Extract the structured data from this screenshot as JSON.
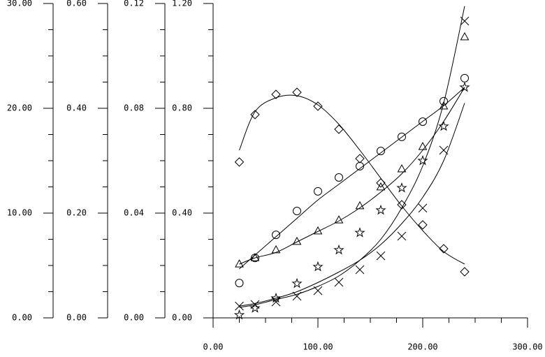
{
  "chart_data": {
    "type": "scatter",
    "x": [
      25,
      40,
      60,
      80,
      100,
      120,
      140,
      160,
      180,
      200,
      220,
      240
    ],
    "xlim": [
      0,
      300
    ],
    "xticks": [
      {
        "value": 0,
        "label": "0.00"
      },
      {
        "value": 100,
        "label": "100.00"
      },
      {
        "value": 200,
        "label": "200.00"
      },
      {
        "value": 300,
        "label": "300.00"
      }
    ],
    "xminorticks": [
      25,
      50,
      75,
      125,
      150,
      175,
      225,
      250,
      275
    ],
    "y_axes": [
      {
        "ylim": [
          0,
          30
        ],
        "yticks": [
          {
            "value": 0,
            "label": "0.00"
          },
          {
            "value": 10,
            "label": "10.00"
          },
          {
            "value": 20,
            "label": "20.00"
          },
          {
            "value": 30,
            "label": "30.00"
          }
        ],
        "yminorticks": [
          2.5,
          5,
          7.5,
          12.5,
          15,
          17.5,
          22.5,
          25,
          27.5
        ]
      },
      {
        "ylim": [
          0,
          0.6
        ],
        "yticks": [
          {
            "value": 0,
            "label": "0.00"
          },
          {
            "value": 0.2,
            "label": "0.20"
          },
          {
            "value": 0.4,
            "label": "0.40"
          },
          {
            "value": 0.6,
            "label": "0.60"
          }
        ],
        "yminorticks": [
          0.05,
          0.1,
          0.15,
          0.25,
          0.3,
          0.35,
          0.45,
          0.5,
          0.55
        ]
      },
      {
        "ylim": [
          0,
          0.12
        ],
        "yticks": [
          {
            "value": 0,
            "label": "0.00"
          },
          {
            "value": 0.04,
            "label": "0.04"
          },
          {
            "value": 0.08,
            "label": "0.08"
          },
          {
            "value": 0.12,
            "label": "0.12"
          }
        ],
        "yminorticks": [
          0.01,
          0.02,
          0.03,
          0.05,
          0.06,
          0.07,
          0.09,
          0.1,
          0.11
        ]
      },
      {
        "ylim": [
          0,
          1.2
        ],
        "yticks": [
          {
            "value": 0,
            "label": "0.00"
          },
          {
            "value": 0.4,
            "label": "0.40"
          },
          {
            "value": 0.8,
            "label": "0.80"
          },
          {
            "value": 1.2,
            "label": "1.20"
          }
        ],
        "yminorticks": [
          0.1,
          0.2,
          0.3,
          0.5,
          0.6,
          0.7,
          0.9,
          1.0,
          1.1
        ]
      }
    ],
    "color": "#000000",
    "series": [
      {
        "marker": "diamond",
        "values": [
          0.595,
          0.776,
          0.853,
          0.861,
          0.808,
          0.72,
          0.608,
          0.515,
          0.432,
          0.355,
          0.264,
          0.176
        ],
        "fit": [
          0.64,
          0.787,
          0.84,
          0.848,
          0.813,
          0.739,
          0.64,
          0.533,
          0.427,
          0.333,
          0.253,
          0.205
        ]
      },
      {
        "marker": "circle",
        "values": [
          0.133,
          0.229,
          0.317,
          0.408,
          0.483,
          0.536,
          0.579,
          0.637,
          0.691,
          0.749,
          0.827,
          0.915
        ],
        "fit": [
          0.187,
          0.24,
          0.31,
          0.38,
          0.45,
          0.51,
          0.57,
          0.63,
          0.69,
          0.75,
          0.81,
          0.88
        ]
      },
      {
        "marker": "triangle",
        "values": [
          0.205,
          0.229,
          0.259,
          0.291,
          0.331,
          0.373,
          0.427,
          0.499,
          0.568,
          0.653,
          0.808,
          1.072
        ],
        "fit": [
          0.205,
          0.229,
          0.25,
          0.29,
          0.33,
          0.37,
          0.42,
          0.48,
          0.55,
          0.64,
          0.75,
          0.88
        ]
      },
      {
        "marker": "star",
        "values": [
          0.011,
          0.037,
          0.075,
          0.131,
          0.195,
          0.259,
          0.325,
          0.411,
          0.496,
          0.6,
          0.731,
          0.88
        ],
        "fit": [
          0.045,
          0.055,
          0.075,
          0.1,
          0.135,
          0.175,
          0.22,
          0.28,
          0.36,
          0.46,
          0.6,
          0.82
        ]
      },
      {
        "marker": "cross",
        "values": [
          0.045,
          0.051,
          0.061,
          0.083,
          0.104,
          0.136,
          0.184,
          0.237,
          0.312,
          0.419,
          0.64,
          1.133
        ],
        "fit": [
          0.04,
          0.05,
          0.07,
          0.09,
          0.12,
          0.16,
          0.22,
          0.3,
          0.42,
          0.58,
          0.82,
          1.19
        ]
      }
    ]
  }
}
